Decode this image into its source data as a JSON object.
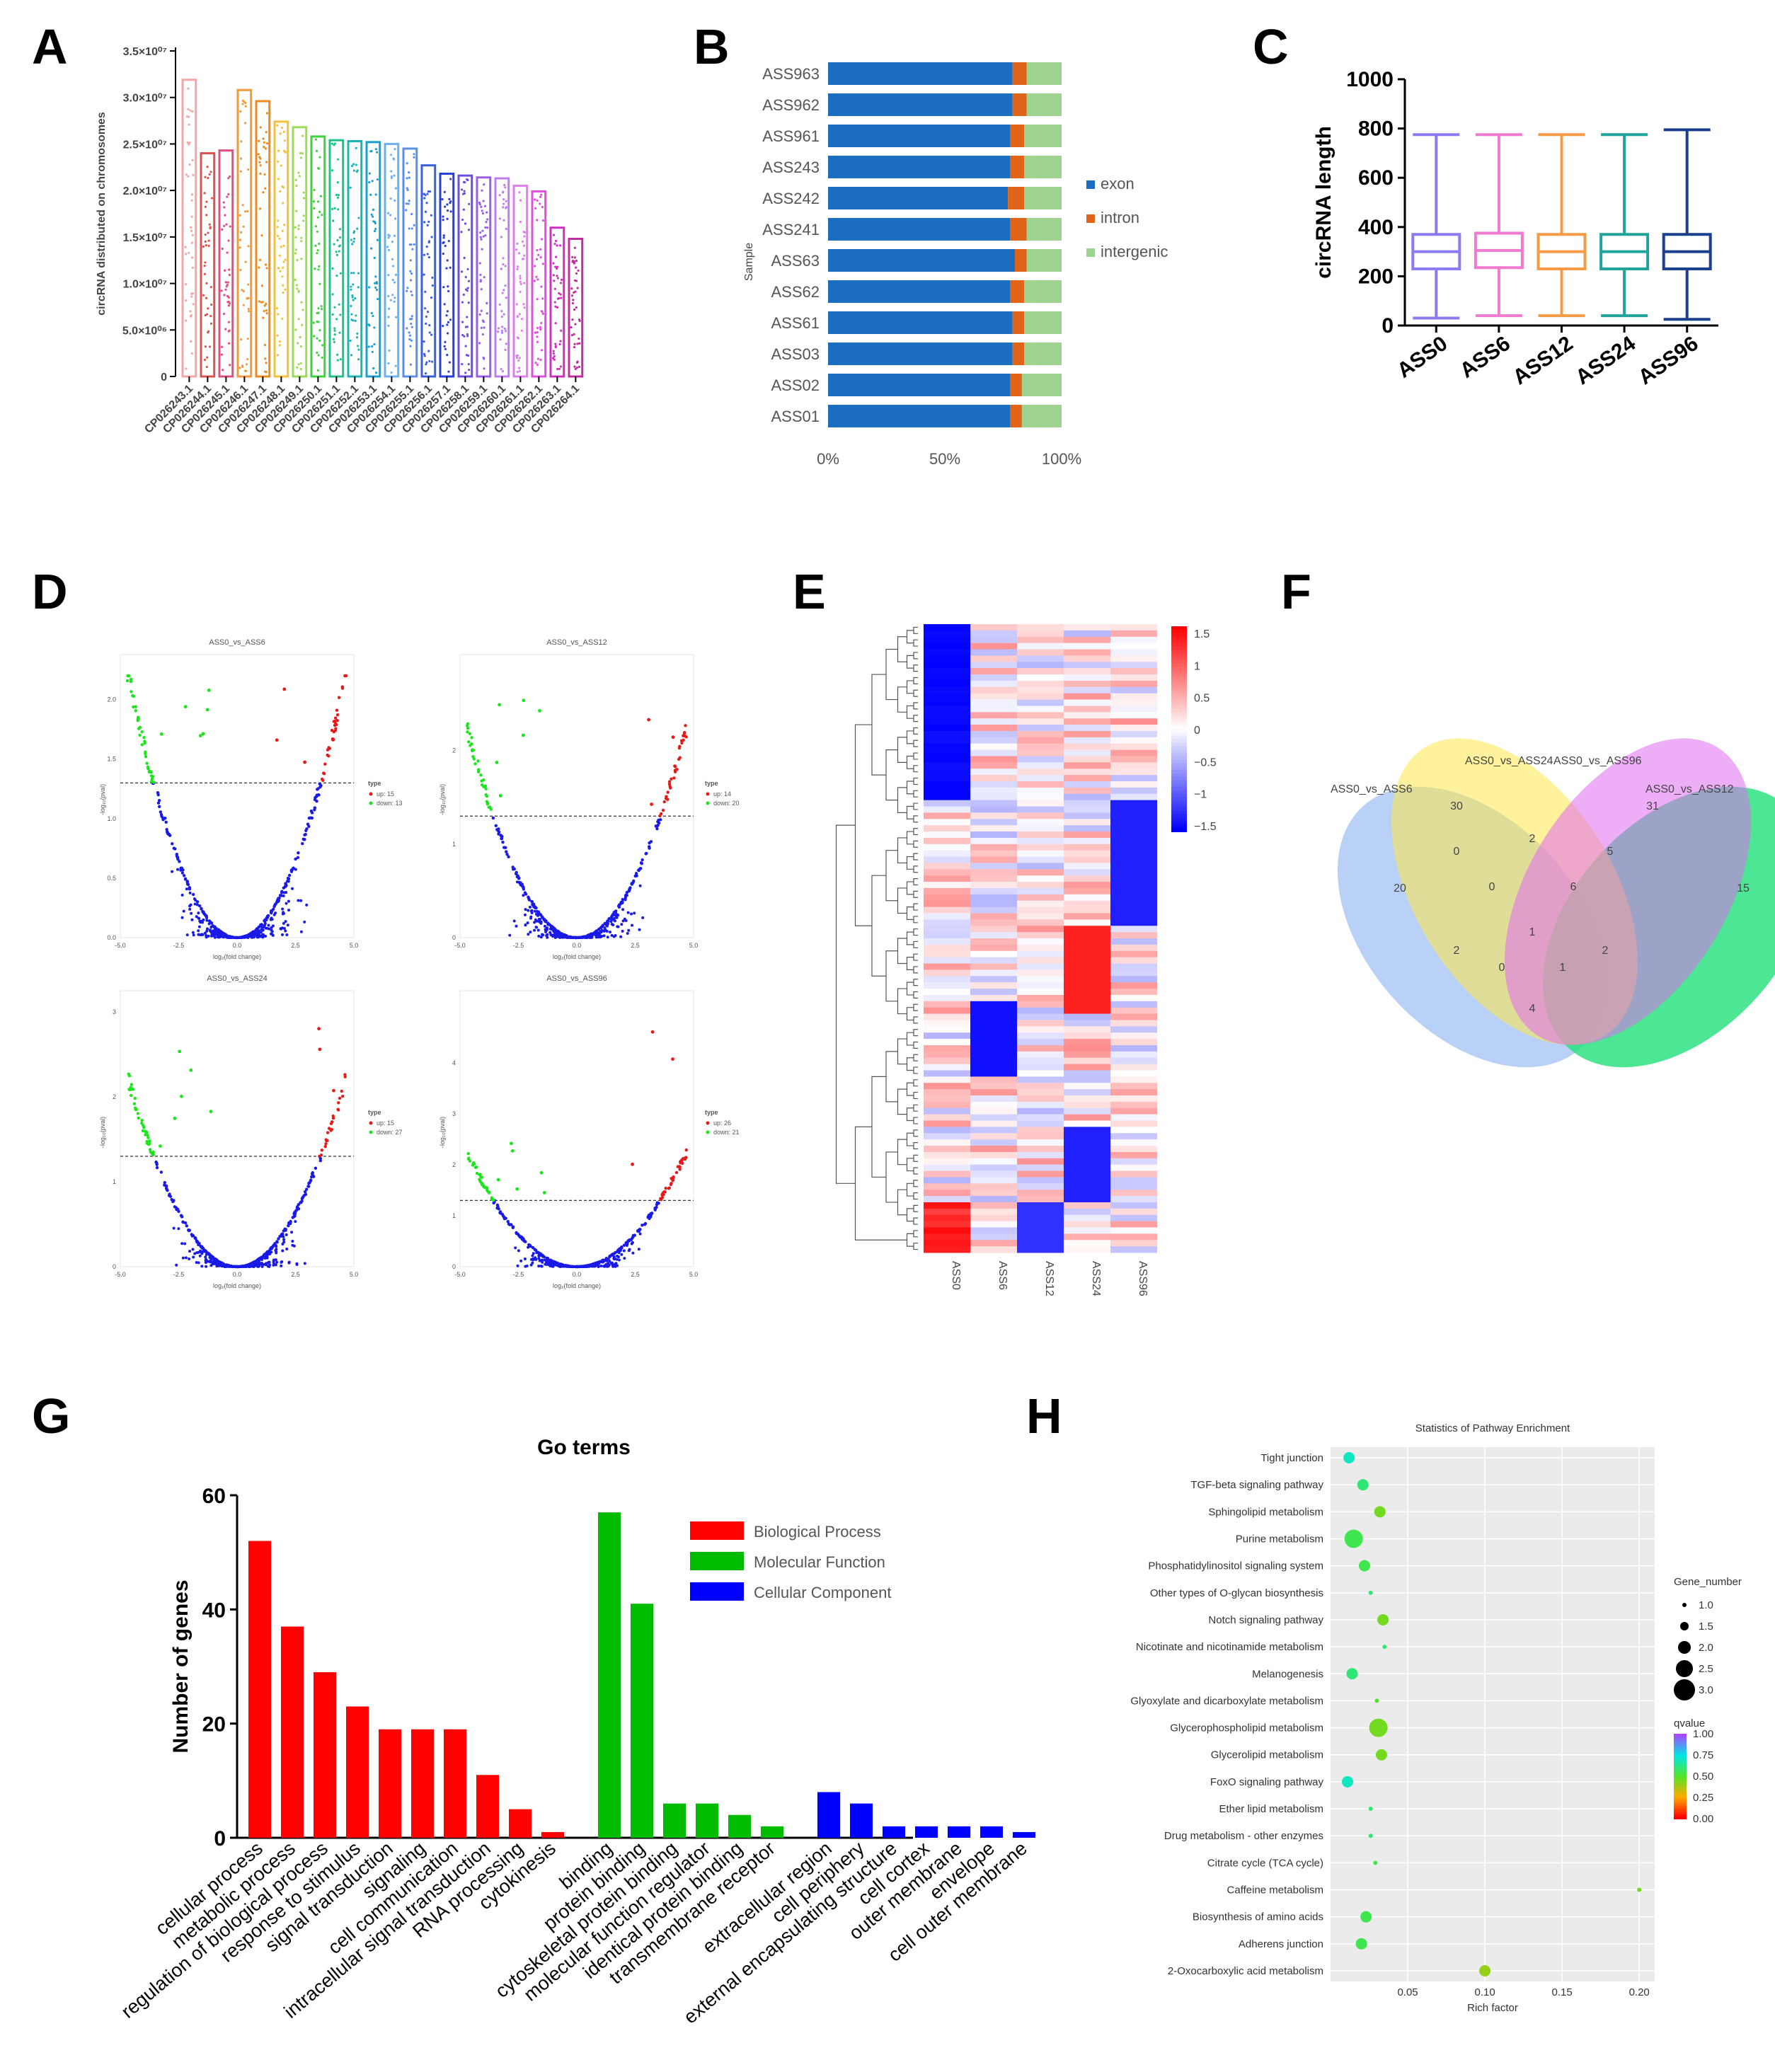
{
  "panels": {
    "A": "A",
    "B": "B",
    "C": "C",
    "D": "D",
    "E": "E",
    "F": "F",
    "G": "G",
    "H": "H"
  },
  "chart_data": [
    {
      "panel": "A",
      "type": "bar",
      "ylabel": "circRNA distributed on chromosomes",
      "ylim": [
        0,
        35000000
      ],
      "yticks": [
        0,
        5000000,
        10000000,
        15000000,
        20000000,
        25000000,
        30000000,
        35000000
      ],
      "ytick_labels": [
        "0",
        "5.0×10⁰⁶",
        "1.0×10⁰⁷",
        "1.5×10⁰⁷",
        "2.0×10⁰⁷",
        "2.5×10⁰⁷",
        "3.0×10⁰⁷",
        "3.5×10⁰⁷"
      ],
      "categories": [
        "CP026243.1",
        "CP026244.1",
        "CP026245.1",
        "CP026246.1",
        "CP026247.1",
        "CP026248.1",
        "CP026249.1",
        "CP026250.1",
        "CP026251.1",
        "CP026252.1",
        "CP026253.1",
        "CP026254.1",
        "CP026255.1",
        "CP026256.1",
        "CP026257.1",
        "CP026258.1",
        "CP026259.1",
        "CP026260.1",
        "CP026261.1",
        "CP026262.1",
        "CP026263.1",
        "CP026264.1"
      ],
      "values": [
        31900000,
        24000000,
        24300000,
        30800000,
        29600000,
        27400000,
        26800000,
        25800000,
        25400000,
        25300000,
        25200000,
        25000000,
        24500000,
        22700000,
        21800000,
        21600000,
        21400000,
        21300000,
        20500000,
        19900000,
        16000000,
        14800000
      ],
      "colors": [
        "#f4a6a6",
        "#d9534f",
        "#e0507c",
        "#f29a3c",
        "#f08a1c",
        "#f2c23c",
        "#9edb5a",
        "#3fd13f",
        "#22c08a",
        "#1fb4b4",
        "#1aa0d0",
        "#6fb0f0",
        "#5a8ff0",
        "#3a5fe0",
        "#2a3fd8",
        "#6a4fe0",
        "#9a5fe8",
        "#c07ef0",
        "#e07ef0",
        "#e04fe0",
        "#d02fc0",
        "#c02fa0"
      ]
    },
    {
      "panel": "B",
      "type": "bar",
      "orientation": "horizontal-stacked",
      "ylabel": "Sample",
      "categories": [
        "ASS963",
        "ASS962",
        "ASS961",
        "ASS243",
        "ASS242",
        "ASS241",
        "ASS63",
        "ASS62",
        "ASS61",
        "ASS03",
        "ASS02",
        "ASS01"
      ],
      "series": [
        {
          "name": "exon",
          "color": "#1b6ec2",
          "values": [
            79,
            79,
            78,
            78,
            77,
            78,
            80,
            78,
            79,
            79,
            78,
            78
          ]
        },
        {
          "name": "intron",
          "color": "#e0651b",
          "values": [
            6,
            6,
            6,
            6,
            7,
            7,
            5,
            6,
            5,
            5,
            5,
            5
          ]
        },
        {
          "name": "intergenic",
          "color": "#9ed490",
          "values": [
            15,
            15,
            16,
            16,
            16,
            15,
            15,
            16,
            16,
            16,
            17,
            17
          ]
        }
      ],
      "xticks": [
        "0%",
        "50%",
        "100%"
      ]
    },
    {
      "panel": "C",
      "type": "box",
      "ylabel": "circRNA length",
      "ylim": [
        0,
        1000
      ],
      "yticks": [
        0,
        200,
        400,
        600,
        800,
        1000
      ],
      "categories": [
        "ASS0",
        "ASS6",
        "ASS12",
        "ASS24",
        "ASS96"
      ],
      "colors": [
        "#8b7bf0",
        "#f07ad0",
        "#f59a45",
        "#1fa39a",
        "#1b3f8f"
      ],
      "boxes": [
        {
          "min": 30,
          "q1": 230,
          "median": 300,
          "q3": 370,
          "max": 775
        },
        {
          "min": 40,
          "q1": 235,
          "median": 305,
          "q3": 375,
          "max": 775
        },
        {
          "min": 40,
          "q1": 230,
          "median": 300,
          "q3": 370,
          "max": 775
        },
        {
          "min": 40,
          "q1": 230,
          "median": 300,
          "q3": 370,
          "max": 775
        },
        {
          "min": 25,
          "q1": 230,
          "median": 300,
          "q3": 370,
          "max": 795
        }
      ]
    },
    {
      "panel": "D",
      "type": "scatter",
      "subtype": "volcano",
      "xlabel": "log₂(fold change)",
      "ylabel": "-log₁₀(pval)",
      "legend_title": "type",
      "plots": [
        {
          "title": "ASS0_vs_ASS6",
          "up": "up: 15",
          "down": "down: 13",
          "ymax": 2.2,
          "xticks": [
            "-5.0",
            "-2.5",
            "0.0",
            "2.5",
            "5.0"
          ],
          "yticks": [
            "0.0",
            "0.5",
            "1.0",
            "1.5",
            "2.0"
          ],
          "seed": 3
        },
        {
          "title": "ASS0_vs_ASS12",
          "up": "up: 14",
          "down": "down: 20",
          "ymax": 2.8,
          "xticks": [
            "-5.0",
            "-2.5",
            "0.0",
            "2.5",
            "5.0"
          ],
          "yticks": [
            "0",
            "1",
            "2"
          ],
          "seed": 7
        },
        {
          "title": "ASS0_vs_ASS24",
          "up": "up: 15",
          "down": "down: 27",
          "ymax": 3.0,
          "xticks": [
            "-5.0",
            "-2.5",
            "0.0",
            "2.5",
            "5.0"
          ],
          "yticks": [
            "0",
            "1",
            "2",
            "3"
          ],
          "seed": 11
        },
        {
          "title": "ASS0_vs_ASS96",
          "up": "up: 26",
          "down": "down: 21",
          "ymax": 5.0,
          "xticks": [
            "-5.0",
            "-2.5",
            "0.0",
            "2.5",
            "5.0"
          ],
          "yticks": [
            "0",
            "1",
            "2",
            "3",
            "4"
          ],
          "seed": 19
        }
      ]
    },
    {
      "panel": "E",
      "type": "heatmap",
      "columns": [
        "ASS0",
        "ASS6",
        "ASS12",
        "ASS24",
        "ASS96"
      ],
      "scale_ticks": [
        "1.5",
        "1",
        "0.5",
        "0",
        "−0.5",
        "−1",
        "−1.5"
      ],
      "rows": 100
    },
    {
      "panel": "F",
      "type": "venn",
      "sets": [
        "ASS0_vs_ASS6",
        "ASS0_vs_ASS24",
        "ASS0_vs_ASS96",
        "ASS0_vs_ASS12"
      ],
      "counts": [
        "20",
        "30",
        "31",
        "15",
        "0",
        "2",
        "5",
        "0",
        "6",
        "2",
        "1",
        "2",
        "0",
        "1",
        "4"
      ]
    },
    {
      "panel": "G",
      "type": "bar",
      "title": "Go terms",
      "ylabel": "Number of genes",
      "ylim": [
        0,
        60
      ],
      "yticks": [
        0,
        20,
        40,
        60
      ],
      "series_legend": [
        {
          "name": "Biological Process",
          "color": "#ff0000"
        },
        {
          "name": "Molecular Function",
          "color": "#00bb00"
        },
        {
          "name": "Cellular Component",
          "color": "#0000ff"
        }
      ],
      "groups": [
        {
          "name": "Biological Process",
          "color": "#ff0000",
          "categories": [
            "cellular process",
            "metabolic process",
            "regulation of biological process",
            "response to stimulus",
            "signal transduction",
            "signaling",
            "cell communication",
            "intracellular signal transduction",
            "RNA processing",
            "cytokinesis"
          ],
          "values": [
            52,
            37,
            29,
            23,
            19,
            19,
            19,
            11,
            5,
            1
          ]
        },
        {
          "name": "Molecular Function",
          "color": "#00bb00",
          "categories": [
            "binding",
            "protein binding",
            "cytoskeletal protein binding",
            "molecular function regulator",
            "identical protein binding",
            "transmembrane receptor"
          ],
          "values": [
            57,
            41,
            6,
            6,
            4,
            2
          ]
        },
        {
          "name": "Cellular Component",
          "color": "#0000ff",
          "categories": [
            "extracellular region",
            "cell periphery",
            "external encapsulating structure",
            "cell cortex",
            "outer membrane",
            "envelope",
            "cell outer membrane"
          ],
          "values": [
            8,
            6,
            2,
            2,
            2,
            2,
            1
          ]
        }
      ]
    },
    {
      "panel": "H",
      "type": "scatter",
      "subtype": "bubble",
      "title": "Statistics of Pathway Enrichment",
      "xlabel": "Rich factor",
      "xlim": [
        0.0,
        0.21
      ],
      "xticks": [
        0.05,
        0.1,
        0.15,
        0.2
      ],
      "xtick_labels": [
        "0.05",
        "0.10",
        "0.15",
        "0.20"
      ],
      "size_legend_title": "Gene_number",
      "size_legend": [
        "1.0",
        "1.5",
        "2.0",
        "2.5",
        "3.0"
      ],
      "color_legend_title": "qvalue",
      "color_legend": [
        "1.00",
        "0.75",
        "0.50",
        "0.25",
        "0.00"
      ],
      "pathways": [
        {
          "name": "Tight junction",
          "rich": 0.012,
          "genes": 2,
          "q": 0.7
        },
        {
          "name": "TGF-beta signaling pathway",
          "rich": 0.021,
          "genes": 2,
          "q": 0.6
        },
        {
          "name": "Sphingolipid metabolism",
          "rich": 0.032,
          "genes": 2,
          "q": 0.45
        },
        {
          "name": "Purine metabolism",
          "rich": 0.015,
          "genes": 3,
          "q": 0.55
        },
        {
          "name": "Phosphatidylinositol signaling system",
          "rich": 0.022,
          "genes": 2,
          "q": 0.55
        },
        {
          "name": "Other types of O-glycan biosynthesis",
          "rich": 0.026,
          "genes": 1,
          "q": 0.6
        },
        {
          "name": "Notch signaling pathway",
          "rich": 0.034,
          "genes": 2,
          "q": 0.45
        },
        {
          "name": "Nicotinate and nicotinamide metabolism",
          "rich": 0.035,
          "genes": 1,
          "q": 0.6
        },
        {
          "name": "Melanogenesis",
          "rich": 0.014,
          "genes": 2,
          "q": 0.6
        },
        {
          "name": "Glyoxylate and dicarboxylate metabolism",
          "rich": 0.03,
          "genes": 1,
          "q": 0.5
        },
        {
          "name": "Glycerophospholipid metabolism",
          "rich": 0.031,
          "genes": 3,
          "q": 0.45
        },
        {
          "name": "Glycerolipid metabolism",
          "rich": 0.033,
          "genes": 2,
          "q": 0.45
        },
        {
          "name": "FoxO signaling pathway",
          "rich": 0.011,
          "genes": 2,
          "q": 0.7
        },
        {
          "name": "Ether lipid metabolism",
          "rich": 0.026,
          "genes": 1,
          "q": 0.6
        },
        {
          "name": "Drug metabolism - other enzymes",
          "rich": 0.026,
          "genes": 1,
          "q": 0.6
        },
        {
          "name": "Citrate cycle (TCA cycle)",
          "rich": 0.029,
          "genes": 1,
          "q": 0.55
        },
        {
          "name": "Caffeine metabolism",
          "rich": 0.2,
          "genes": 1,
          "q": 0.45
        },
        {
          "name": "Biosynthesis of amino acids",
          "rich": 0.023,
          "genes": 2,
          "q": 0.55
        },
        {
          "name": "Adherens junction",
          "rich": 0.02,
          "genes": 2,
          "q": 0.55
        },
        {
          "name": "2-Oxocarboxylic acid metabolism",
          "rich": 0.1,
          "genes": 2,
          "q": 0.4
        }
      ]
    }
  ]
}
